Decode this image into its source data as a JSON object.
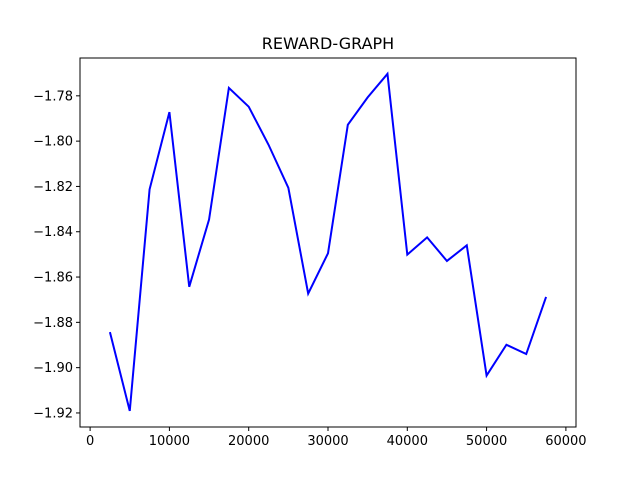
{
  "chart_data": {
    "type": "line",
    "title": "REWARD-GRAPH",
    "xlabel": "",
    "ylabel": "",
    "xlim": [
      -1275,
      61275
    ],
    "ylim": [
      -1.9262,
      -1.7633
    ],
    "xticks": [
      0,
      10000,
      20000,
      30000,
      40000,
      50000,
      60000
    ],
    "xtick_labels": [
      "0",
      "10000",
      "20000",
      "30000",
      "40000",
      "50000",
      "60000"
    ],
    "yticks": [
      -1.92,
      -1.9,
      -1.88,
      -1.86,
      -1.84,
      -1.82,
      -1.8,
      -1.78
    ],
    "ytick_labels": [
      "−1.92",
      "−1.90",
      "−1.88",
      "−1.86",
      "−1.84",
      "−1.82",
      "−1.80",
      "−1.78"
    ],
    "grid": false,
    "series": [
      {
        "color": "#0000ff",
        "x": [
          2500,
          5000,
          7500,
          10000,
          12500,
          15000,
          17500,
          20000,
          22500,
          25000,
          27500,
          30000,
          32500,
          35000,
          37500,
          40000,
          42500,
          45000,
          47500,
          50000,
          52500,
          55000,
          57500
        ],
        "y": [
          -1.8843,
          -1.9191,
          -1.8213,
          -1.7872,
          -1.8643,
          -1.8346,
          -1.7765,
          -1.7848,
          -1.8016,
          -1.8206,
          -1.8673,
          -1.8495,
          -1.7928,
          -1.7807,
          -1.7703,
          -1.8501,
          -1.8425,
          -1.8529,
          -1.846,
          -1.9035,
          -1.8899,
          -1.894,
          -1.8688
        ]
      }
    ]
  }
}
